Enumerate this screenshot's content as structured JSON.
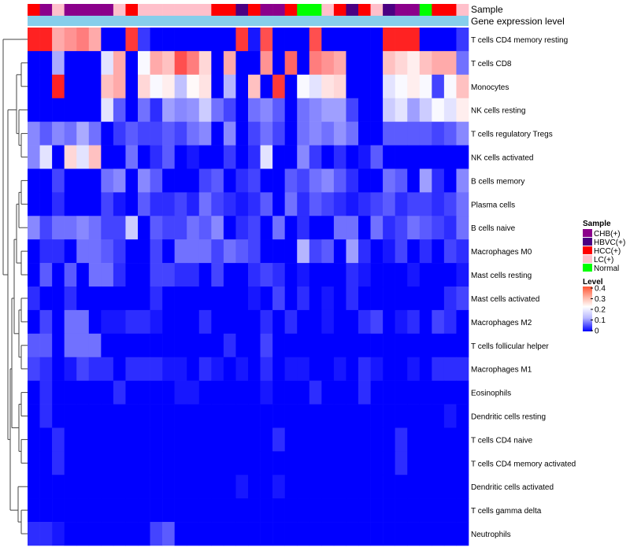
{
  "chart_data": {
    "type": "heatmap",
    "title": "",
    "annotation_tracks": [
      "Sample",
      "Gene expression level"
    ],
    "legend_sample": {
      "title": "Sample",
      "items": [
        {
          "label": "CHB(+)",
          "color": "#8B008B"
        },
        {
          "label": "HBVC(+)",
          "color": "#4B0082"
        },
        {
          "label": "HCC(+)",
          "color": "#FF0000"
        },
        {
          "label": "LC(+)",
          "color": "#FFC0CB"
        },
        {
          "label": "Normal",
          "color": "#00FF00"
        }
      ]
    },
    "legend_level": {
      "title": "Level",
      "ticks": [
        "0.4",
        "0.3",
        "0.2",
        "0.1",
        "0"
      ]
    },
    "color_scale": {
      "low": "#0000FF",
      "mid": "#FFFFFF",
      "high": "#FF0000",
      "range": [
        0,
        0.45
      ]
    },
    "sample_groups": [
      "HCC(+)",
      "CHB(+)",
      "LC(+)",
      "CHB(+)",
      "CHB(+)",
      "CHB(+)",
      "CHB(+)",
      "LC(+)",
      "HCC(+)",
      "LC(+)",
      "LC(+)",
      "LC(+)",
      "LC(+)",
      "LC(+)",
      "LC(+)",
      "HCC(+)",
      "HCC(+)",
      "HBVC(+)",
      "HCC(+)",
      "CHB(+)",
      "CHB(+)",
      "HCC(+)",
      "Normal",
      "Normal",
      "LC(+)",
      "HCC(+)",
      "HBVC(+)",
      "HCC(+)",
      "LC(+)",
      "HBVC(+)",
      "CHB(+)",
      "CHB(+)",
      "Normal",
      "HCC(+)",
      "HCC(+)",
      "LC(+)"
    ],
    "expression_track_color": "#87CEEB",
    "rows": [
      {
        "name": "T cells CD4 memory resting",
        "values": [
          0.42,
          0.42,
          0.3,
          0.32,
          0.34,
          0.3,
          0.0,
          0.0,
          0.4,
          0.05,
          0.0,
          0.0,
          0.0,
          0.0,
          0.0,
          0.0,
          0.0,
          0.4,
          0.02,
          0.38,
          0.0,
          0.0,
          0.0,
          0.38,
          0.0,
          0.0,
          0.0,
          0.0,
          0.0,
          0.42,
          0.42,
          0.42,
          0.0,
          0.0,
          0.0,
          0.05
        ]
      },
      {
        "name": "T cells CD8",
        "values": [
          0.0,
          0.0,
          0.15,
          0.0,
          0.0,
          0.0,
          0.2,
          0.3,
          0.0,
          0.22,
          0.3,
          0.28,
          0.38,
          0.34,
          0.26,
          0.0,
          0.3,
          0.0,
          0.0,
          0.32,
          0.0,
          0.36,
          0.0,
          0.34,
          0.32,
          0.3,
          0.0,
          0.0,
          0.0,
          0.28,
          0.26,
          0.24,
          0.28,
          0.3,
          0.3,
          0.1
        ]
      },
      {
        "name": "Monocytes",
        "values": [
          0.0,
          0.0,
          0.42,
          0.0,
          0.0,
          0.0,
          0.28,
          0.3,
          0.0,
          0.26,
          0.22,
          0.24,
          0.17,
          0.23,
          0.25,
          0.0,
          0.16,
          0.0,
          0.28,
          0.0,
          0.4,
          0.0,
          0.22,
          0.2,
          0.25,
          0.26,
          0.0,
          0.0,
          0.0,
          0.2,
          0.22,
          0.24,
          0.22,
          0.06,
          0.22,
          0.28
        ]
      },
      {
        "name": "NK cells resting",
        "values": [
          0.0,
          0.0,
          0.0,
          0.0,
          0.0,
          0.0,
          0.2,
          0.08,
          0.0,
          0.1,
          0.04,
          0.14,
          0.12,
          0.13,
          0.18,
          0.1,
          0.06,
          0.0,
          0.1,
          0.12,
          0.08,
          0.0,
          0.1,
          0.12,
          0.14,
          0.14,
          0.06,
          0.0,
          0.0,
          0.18,
          0.2,
          0.14,
          0.18,
          0.22,
          0.2,
          0.24
        ]
      },
      {
        "name": "T cells regulatory  Tregs",
        "values": [
          0.12,
          0.08,
          0.12,
          0.1,
          0.15,
          0.1,
          0.0,
          0.05,
          0.08,
          0.06,
          0.06,
          0.08,
          0.06,
          0.1,
          0.12,
          0.0,
          0.12,
          0.0,
          0.06,
          0.1,
          0.06,
          0.0,
          0.1,
          0.12,
          0.1,
          0.13,
          0.1,
          0.0,
          0.0,
          0.08,
          0.08,
          0.08,
          0.08,
          0.06,
          0.08,
          0.12
        ]
      },
      {
        "name": "NK cells activated",
        "values": [
          0.12,
          0.2,
          0.0,
          0.26,
          0.2,
          0.28,
          0.0,
          0.0,
          0.1,
          0.0,
          0.04,
          0.08,
          0.0,
          0.02,
          0.0,
          0.0,
          0.05,
          0.0,
          0.04,
          0.2,
          0.0,
          0.0,
          0.12,
          0.05,
          0.0,
          0.04,
          0.0,
          0.02,
          0.08,
          0.0,
          0.0,
          0.0,
          0.0,
          0.0,
          0.0,
          0.0
        ]
      },
      {
        "name": "B cells memory",
        "values": [
          0.0,
          0.0,
          0.06,
          0.0,
          0.0,
          0.0,
          0.1,
          0.12,
          0.0,
          0.12,
          0.08,
          0.0,
          0.0,
          0.0,
          0.06,
          0.08,
          0.0,
          0.04,
          0.06,
          0.0,
          0.0,
          0.08,
          0.06,
          0.1,
          0.12,
          0.08,
          0.04,
          0.0,
          0.0,
          0.1,
          0.08,
          0.0,
          0.14,
          0.04,
          0.0,
          0.12
        ]
      },
      {
        "name": "Plasma cells",
        "values": [
          0.0,
          0.0,
          0.04,
          0.0,
          0.0,
          0.0,
          0.06,
          0.02,
          0.0,
          0.08,
          0.04,
          0.04,
          0.06,
          0.03,
          0.1,
          0.06,
          0.04,
          0.02,
          0.04,
          0.08,
          0.0,
          0.1,
          0.04,
          0.08,
          0.06,
          0.04,
          0.02,
          0.04,
          0.06,
          0.08,
          0.04,
          0.06,
          0.06,
          0.04,
          0.06,
          0.1
        ]
      },
      {
        "name": "B cells naive",
        "values": [
          0.12,
          0.06,
          0.1,
          0.1,
          0.12,
          0.1,
          0.06,
          0.06,
          0.18,
          0.0,
          0.08,
          0.06,
          0.06,
          0.1,
          0.08,
          0.12,
          0.0,
          0.04,
          0.06,
          0.0,
          0.1,
          0.0,
          0.04,
          0.0,
          0.0,
          0.1,
          0.1,
          0.0,
          0.1,
          0.04,
          0.06,
          0.1,
          0.08,
          0.06,
          0.04,
          0.1
        ]
      },
      {
        "name": "Macrophages M0",
        "values": [
          0.0,
          0.04,
          0.04,
          0.0,
          0.1,
          0.1,
          0.08,
          0.05,
          0.0,
          0.0,
          0.06,
          0.0,
          0.1,
          0.1,
          0.1,
          0.06,
          0.1,
          0.08,
          0.06,
          0.0,
          0.0,
          0.0,
          0.16,
          0.06,
          0.08,
          0.0,
          0.14,
          0.04,
          0.0,
          0.02,
          0.06,
          0.0,
          0.04,
          0.0,
          0.06,
          0.04
        ]
      },
      {
        "name": "Mast cells resting",
        "values": [
          0.0,
          0.08,
          0.0,
          0.08,
          0.0,
          0.1,
          0.1,
          0.04,
          0.0,
          0.0,
          0.06,
          0.06,
          0.04,
          0.04,
          0.0,
          0.06,
          0.0,
          0.0,
          0.04,
          0.06,
          0.04,
          0.0,
          0.02,
          0.0,
          0.0,
          0.0,
          0.04,
          0.02,
          0.0,
          0.0,
          0.0,
          0.02,
          0.0,
          0.0,
          0.0,
          0.02
        ]
      },
      {
        "name": "Mast cells activated",
        "values": [
          0.04,
          0.0,
          0.0,
          0.04,
          0.0,
          0.0,
          0.0,
          0.0,
          0.0,
          0.0,
          0.04,
          0.0,
          0.0,
          0.0,
          0.0,
          0.0,
          0.0,
          0.0,
          0.02,
          0.0,
          0.06,
          0.0,
          0.04,
          0.0,
          0.02,
          0.0,
          0.04,
          0.0,
          0.0,
          0.0,
          0.0,
          0.0,
          0.0,
          0.0,
          0.04,
          0.06
        ]
      },
      {
        "name": "Macrophages M2",
        "values": [
          0.0,
          0.06,
          0.0,
          0.1,
          0.1,
          0.0,
          0.02,
          0.02,
          0.04,
          0.04,
          0.02,
          0.0,
          0.0,
          0.0,
          0.04,
          0.0,
          0.0,
          0.0,
          0.0,
          0.04,
          0.0,
          0.04,
          0.0,
          0.0,
          0.02,
          0.0,
          0.0,
          0.04,
          0.06,
          0.0,
          0.02,
          0.04,
          0.0,
          0.06,
          0.04,
          0.0
        ]
      },
      {
        "name": "T cells follicular helper",
        "values": [
          0.08,
          0.08,
          0.0,
          0.1,
          0.1,
          0.1,
          0.0,
          0.0,
          0.0,
          0.0,
          0.0,
          0.0,
          0.0,
          0.0,
          0.0,
          0.0,
          0.04,
          0.0,
          0.0,
          0.06,
          0.0,
          0.0,
          0.0,
          0.0,
          0.0,
          0.0,
          0.0,
          0.0,
          0.0,
          0.0,
          0.0,
          0.0,
          0.0,
          0.0,
          0.0,
          0.0
        ]
      },
      {
        "name": "Macrophages M1",
        "values": [
          0.06,
          0.04,
          0.0,
          0.02,
          0.06,
          0.04,
          0.04,
          0.0,
          0.04,
          0.04,
          0.04,
          0.02,
          0.02,
          0.0,
          0.04,
          0.02,
          0.0,
          0.02,
          0.0,
          0.04,
          0.0,
          0.02,
          0.02,
          0.0,
          0.0,
          0.02,
          0.0,
          0.04,
          0.02,
          0.0,
          0.0,
          0.02,
          0.0,
          0.04,
          0.04,
          0.04
        ]
      },
      {
        "name": "Eosinophils",
        "values": [
          0.0,
          0.04,
          0.0,
          0.0,
          0.0,
          0.0,
          0.0,
          0.04,
          0.0,
          0.0,
          0.0,
          0.0,
          0.02,
          0.02,
          0.0,
          0.0,
          0.0,
          0.0,
          0.0,
          0.02,
          0.0,
          0.0,
          0.0,
          0.04,
          0.0,
          0.0,
          0.0,
          0.04,
          0.0,
          0.0,
          0.0,
          0.0,
          0.0,
          0.0,
          0.0,
          0.0
        ]
      },
      {
        "name": "Dendritic cells resting",
        "values": [
          0.0,
          0.04,
          0.0,
          0.0,
          0.0,
          0.0,
          0.0,
          0.0,
          0.0,
          0.0,
          0.0,
          0.0,
          0.0,
          0.0,
          0.0,
          0.0,
          0.0,
          0.0,
          0.0,
          0.0,
          0.0,
          0.0,
          0.0,
          0.0,
          0.0,
          0.0,
          0.0,
          0.0,
          0.0,
          0.0,
          0.0,
          0.0,
          0.0,
          0.0,
          0.02,
          0.0
        ]
      },
      {
        "name": "T cells CD4 naive",
        "values": [
          0.0,
          0.0,
          0.04,
          0.0,
          0.0,
          0.0,
          0.0,
          0.0,
          0.0,
          0.0,
          0.0,
          0.0,
          0.0,
          0.0,
          0.0,
          0.0,
          0.0,
          0.0,
          0.0,
          0.0,
          0.04,
          0.0,
          0.0,
          0.0,
          0.0,
          0.0,
          0.0,
          0.0,
          0.0,
          0.0,
          0.04,
          0.0,
          0.0,
          0.0,
          0.0,
          0.0
        ]
      },
      {
        "name": "T cells CD4 memory activated",
        "values": [
          0.0,
          0.0,
          0.04,
          0.0,
          0.0,
          0.0,
          0.0,
          0.0,
          0.0,
          0.0,
          0.0,
          0.0,
          0.0,
          0.0,
          0.0,
          0.0,
          0.0,
          0.0,
          0.0,
          0.0,
          0.0,
          0.0,
          0.0,
          0.0,
          0.0,
          0.0,
          0.0,
          0.0,
          0.0,
          0.0,
          0.04,
          0.0,
          0.0,
          0.0,
          0.0,
          0.0
        ]
      },
      {
        "name": "Dendritic cells activated",
        "values": [
          0.0,
          0.0,
          0.0,
          0.0,
          0.0,
          0.0,
          0.0,
          0.0,
          0.0,
          0.0,
          0.0,
          0.0,
          0.0,
          0.0,
          0.0,
          0.0,
          0.0,
          0.02,
          0.0,
          0.0,
          0.02,
          0.0,
          0.0,
          0.0,
          0.0,
          0.0,
          0.0,
          0.0,
          0.0,
          0.0,
          0.0,
          0.0,
          0.0,
          0.0,
          0.0,
          0.0
        ]
      },
      {
        "name": "T cells gamma delta",
        "values": [
          0.0,
          0.0,
          0.0,
          0.0,
          0.0,
          0.0,
          0.0,
          0.0,
          0.0,
          0.0,
          0.0,
          0.0,
          0.0,
          0.0,
          0.0,
          0.0,
          0.0,
          0.0,
          0.0,
          0.0,
          0.0,
          0.0,
          0.0,
          0.0,
          0.0,
          0.0,
          0.0,
          0.0,
          0.0,
          0.0,
          0.0,
          0.0,
          0.0,
          0.0,
          0.0,
          0.0
        ]
      },
      {
        "name": "Neutrophils",
        "values": [
          0.04,
          0.04,
          0.02,
          0.0,
          0.0,
          0.0,
          0.0,
          0.0,
          0.0,
          0.0,
          0.06,
          0.08,
          0.0,
          0.0,
          0.0,
          0.0,
          0.0,
          0.0,
          0.0,
          0.0,
          0.0,
          0.0,
          0.0,
          0.0,
          0.0,
          0.0,
          0.0,
          0.0,
          0.0,
          0.0,
          0.0,
          0.0,
          0.0,
          0.0,
          0.0,
          0.0
        ]
      }
    ]
  }
}
